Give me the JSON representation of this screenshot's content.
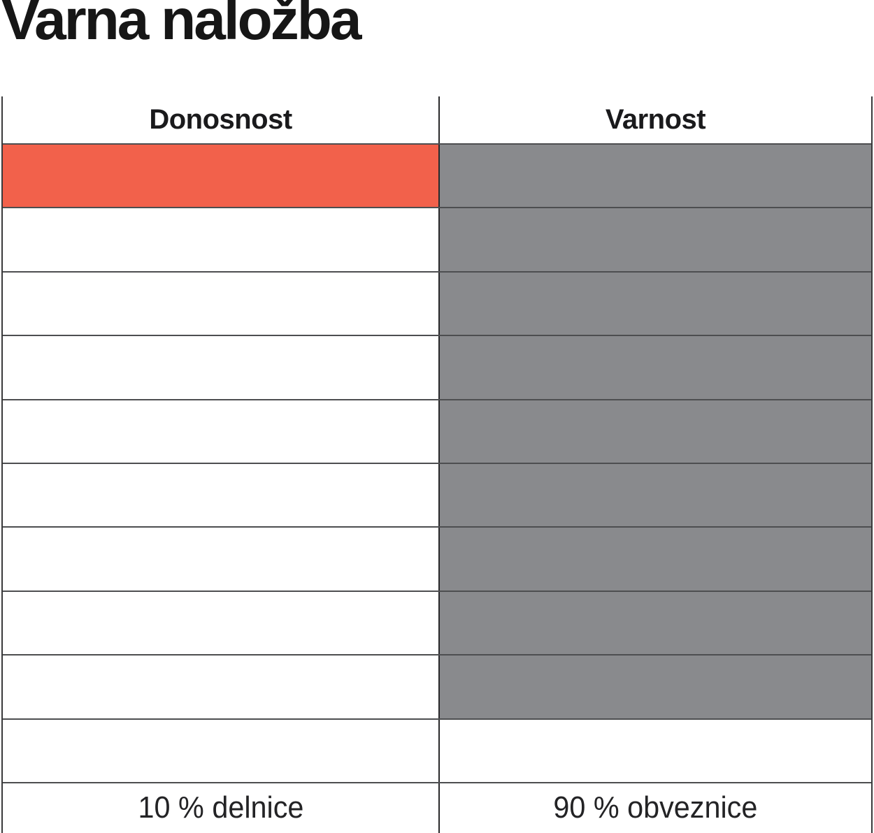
{
  "title": "Varna naložba",
  "columns": {
    "left_header": "Donosnost",
    "right_header": "Varnost"
  },
  "footer": {
    "left_label": "10 % delnice",
    "right_label": "90 % obveznice"
  },
  "colors": {
    "accent_orange": "#F2614B",
    "fill_gray": "#898A8D",
    "border_dark": "#4D4E50",
    "divider_black": "#29292B",
    "text_black": "#1A1A1C"
  },
  "grid": {
    "rows": [
      {
        "donosnost_filled": true,
        "varnost_filled": true
      },
      {
        "donosnost_filled": false,
        "varnost_filled": true
      },
      {
        "donosnost_filled": false,
        "varnost_filled": true
      },
      {
        "donosnost_filled": false,
        "varnost_filled": true
      },
      {
        "donosnost_filled": false,
        "varnost_filled": true
      },
      {
        "donosnost_filled": false,
        "varnost_filled": true
      },
      {
        "donosnost_filled": false,
        "varnost_filled": true
      },
      {
        "donosnost_filled": false,
        "varnost_filled": true
      },
      {
        "donosnost_filled": false,
        "varnost_filled": true
      },
      {
        "donosnost_filled": false,
        "varnost_filled": false
      }
    ]
  },
  "chart_data": {
    "type": "table",
    "title": "Varna naložba",
    "columns": [
      "Donosnost",
      "Varnost"
    ],
    "rows_total": 10,
    "series": [
      {
        "name": "Donosnost",
        "filled_cells": 1,
        "total_cells": 10,
        "fill_color": "#F2614B"
      },
      {
        "name": "Varnost",
        "filled_cells": 9,
        "total_cells": 10,
        "fill_color": "#898A8D"
      }
    ],
    "footer_labels": [
      "10 % delnice",
      "90 % obveznice"
    ],
    "values": {
      "delnice_pct": 10,
      "obveznice_pct": 90
    },
    "legend_position": "none",
    "grid": true
  }
}
